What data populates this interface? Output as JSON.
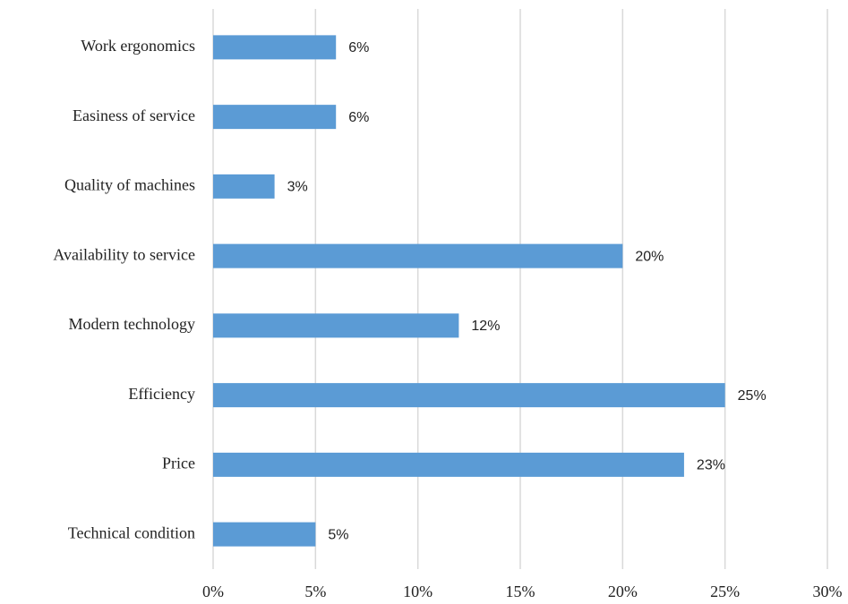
{
  "chart_data": {
    "type": "barh",
    "categories": [
      "Work ergonomics",
      "Easiness of service",
      "Quality of machines",
      "Availability to service",
      "Modern technology",
      "Efficiency",
      "Price",
      "Technical condition"
    ],
    "values": [
      6,
      6,
      3,
      20,
      12,
      25,
      23,
      5
    ],
    "value_labels": [
      "6%",
      "6%",
      "3%",
      "20%",
      "12%",
      "25%",
      "23%",
      "5%"
    ],
    "color": "#5b9bd5",
    "xlim": [
      0,
      30
    ],
    "xticks": [
      {
        "value": 0,
        "label": "0%"
      },
      {
        "value": 5,
        "label": "5%"
      },
      {
        "value": 10,
        "label": "10%"
      },
      {
        "value": 15,
        "label": "15%"
      },
      {
        "value": 20,
        "label": "20%"
      },
      {
        "value": 25,
        "label": "25%"
      },
      {
        "value": 30,
        "label": "30%"
      }
    ],
    "grid": true
  }
}
